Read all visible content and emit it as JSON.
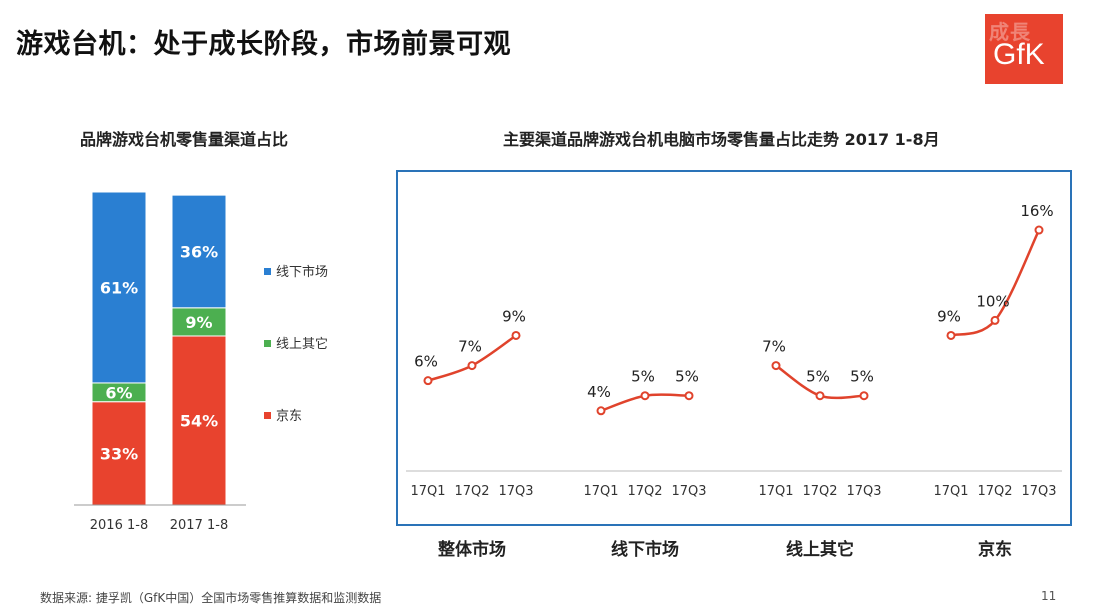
{
  "page": {
    "title": "游戏台机：处于成长阶段，市场前景可观",
    "source": "数据来源: 捷孚凯（GfK中国）全国市场零售推算数据和监测数据",
    "page_number": "11",
    "logo_text": "GfK",
    "logo_watermark": "成長"
  },
  "colors": {
    "offline": "#2a7fd2",
    "online_other": "#4caf50",
    "jd": "#e8432e",
    "line": "#e0432c",
    "frame": "#2a73b8"
  },
  "chart_data": [
    {
      "type": "bar",
      "stacked": true,
      "title": "品牌游戏台机零售量渠道占比",
      "categories": [
        "2016 1-8",
        "2017 1-8"
      ],
      "series": [
        {
          "name": "京东",
          "values": [
            33,
            54
          ],
          "labels": [
            "33%",
            "54%"
          ]
        },
        {
          "name": "线上其它",
          "values": [
            6,
            9
          ],
          "labels": [
            "6%",
            "9%"
          ]
        },
        {
          "name": "线下市场",
          "values": [
            61,
            36
          ],
          "labels": [
            "61%",
            "36%"
          ]
        }
      ],
      "legend": [
        "线下市场",
        "线上其它",
        "京东"
      ],
      "legend_position": "right",
      "ylim": [
        0,
        100
      ]
    },
    {
      "type": "line",
      "title": "主要渠道品牌游戏台机电脑市场零售量占比走势 2017 1-8月",
      "x": [
        "17Q1",
        "17Q2",
        "17Q3"
      ],
      "series": [
        {
          "name": "整体市场",
          "values": [
            6,
            7,
            9
          ],
          "labels": [
            "6%",
            "7%",
            "9%"
          ]
        },
        {
          "name": "线下市场",
          "values": [
            4,
            5,
            5
          ],
          "labels": [
            "4%",
            "5%",
            "5%"
          ]
        },
        {
          "name": "线上其它",
          "values": [
            7,
            5,
            5
          ],
          "labels": [
            "7%",
            "5%",
            "5%"
          ]
        },
        {
          "name": "京东",
          "values": [
            9,
            10,
            16
          ],
          "labels": [
            "9%",
            "10%",
            "16%"
          ]
        }
      ],
      "ylim": [
        0,
        17
      ],
      "grid": false
    }
  ]
}
